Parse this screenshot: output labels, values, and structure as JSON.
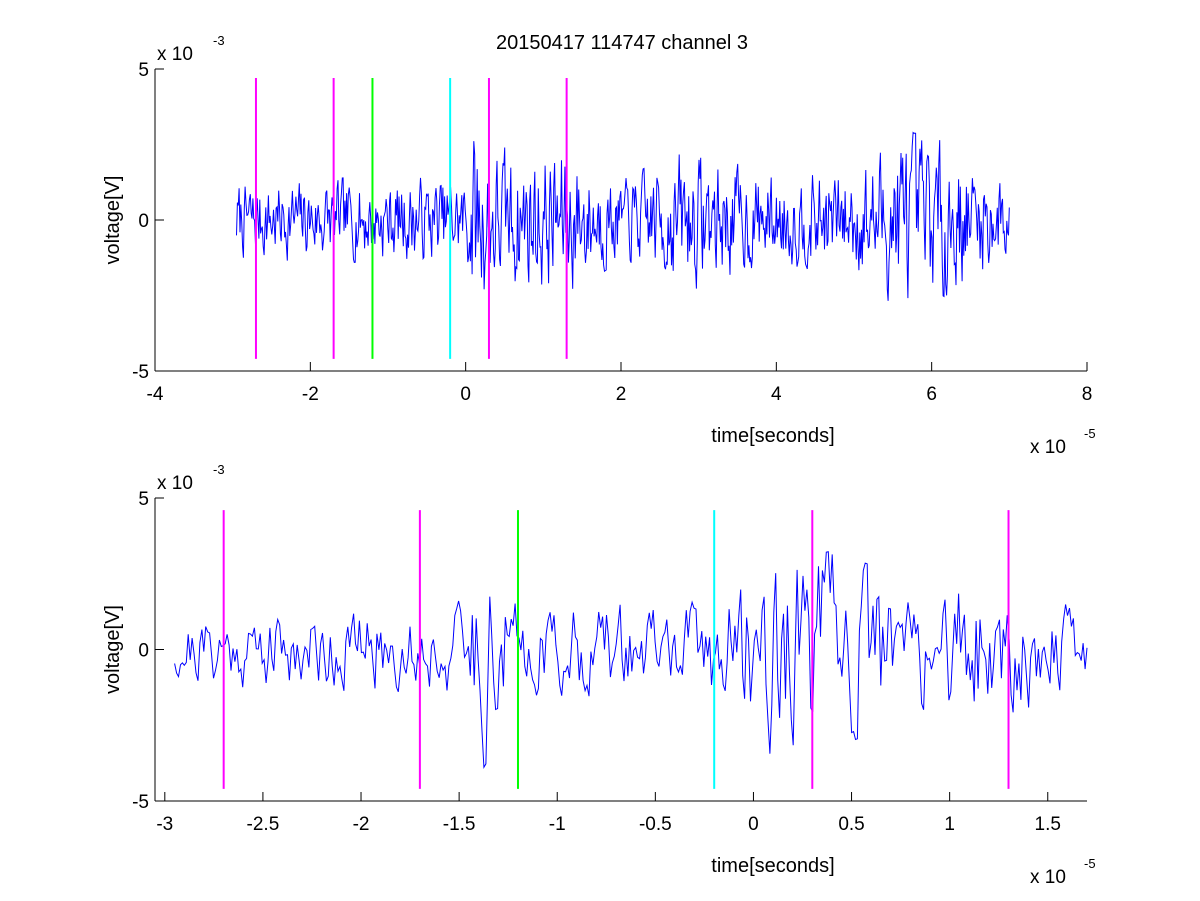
{
  "chart_data": [
    {
      "type": "line",
      "title": "20150417 114747 channel 3",
      "xlabel": "time[seconds]",
      "ylabel": "voltage[V]",
      "xlim": [
        -4,
        8
      ],
      "ylim": [
        -5,
        5
      ],
      "x_ticks": [
        -4,
        -2,
        0,
        2,
        4,
        6,
        8
      ],
      "x_tick_labels": [
        "-4",
        "-2",
        "0",
        "2",
        "4",
        "6",
        "8"
      ],
      "y_ticks": [
        -5,
        0,
        5
      ],
      "y_tick_labels": [
        "-5",
        "0",
        "5"
      ],
      "x_multiplier": {
        "base": "x 10",
        "exponent": "-5"
      },
      "y_multiplier": {
        "base": "x 10",
        "exponent": "-3"
      },
      "grid": false,
      "signal": {
        "color": "#0000ff",
        "x_range": [
          -2.95,
          7.0
        ],
        "samples": 900,
        "amplitude_envelope": [
          {
            "x": -2.95,
            "y": 1.3
          },
          {
            "x": 0.0,
            "y": 1.5
          },
          {
            "x": 0.1,
            "y": 3.2
          },
          {
            "x": 0.5,
            "y": 2.4
          },
          {
            "x": 1.3,
            "y": 2.6
          },
          {
            "x": 2.0,
            "y": 1.3
          },
          {
            "x": 2.8,
            "y": 2.4
          },
          {
            "x": 4.0,
            "y": 1.5
          },
          {
            "x": 5.0,
            "y": 1.8
          },
          {
            "x": 5.6,
            "y": 3.0
          },
          {
            "x": 6.2,
            "y": 2.6
          },
          {
            "x": 7.0,
            "y": 1.4
          }
        ]
      },
      "markers": [
        {
          "x": -2.7,
          "color": "#ff00ff",
          "y_range": [
            -4.6,
            4.7
          ]
        },
        {
          "x": -1.7,
          "color": "#ff00ff",
          "y_range": [
            -4.6,
            4.7
          ]
        },
        {
          "x": -1.2,
          "color": "#00ff00",
          "y_range": [
            -4.6,
            4.7
          ]
        },
        {
          "x": -0.2,
          "color": "#00ffff",
          "y_range": [
            -4.6,
            4.7
          ]
        },
        {
          "x": 0.3,
          "color": "#ff00ff",
          "y_range": [
            -4.6,
            4.7
          ]
        },
        {
          "x": 1.3,
          "color": "#ff00ff",
          "y_range": [
            -4.6,
            4.7
          ]
        }
      ]
    },
    {
      "type": "line",
      "title": "",
      "xlabel": "time[seconds]",
      "ylabel": "voltage[V]",
      "xlim": [
        -3.05,
        1.7
      ],
      "ylim": [
        -5,
        5
      ],
      "x_ticks": [
        -3,
        -2.5,
        -2,
        -1.5,
        -1,
        -0.5,
        0,
        0.5,
        1,
        1.5
      ],
      "x_tick_labels": [
        "-3",
        "-2.5",
        "-2",
        "-1.5",
        "-1",
        "-0.5",
        "0",
        "0.5",
        "1",
        "1.5"
      ],
      "y_ticks": [
        -5,
        0,
        5
      ],
      "y_tick_labels": [
        "-5",
        "0",
        "5"
      ],
      "x_multiplier": {
        "base": "x 10",
        "exponent": "-5"
      },
      "y_multiplier": {
        "base": "x 10",
        "exponent": "-3"
      },
      "grid": false,
      "signal": {
        "color": "#0000ff",
        "x_range": [
          -2.95,
          1.7
        ],
        "samples": 470,
        "amplitude_envelope": [
          {
            "x": -2.95,
            "y": 1.2
          },
          {
            "x": -2.5,
            "y": 1.3
          },
          {
            "x": -1.5,
            "y": 1.6
          },
          {
            "x": -1.38,
            "y": 4.0
          },
          {
            "x": -1.2,
            "y": 1.5
          },
          {
            "x": -0.3,
            "y": 1.6
          },
          {
            "x": 0.0,
            "y": 2.6
          },
          {
            "x": 0.1,
            "y": 3.6
          },
          {
            "x": 0.3,
            "y": 3.5
          },
          {
            "x": 0.8,
            "y": 2.3
          },
          {
            "x": 1.25,
            "y": 2.4
          },
          {
            "x": 1.7,
            "y": 1.2
          }
        ]
      },
      "markers": [
        {
          "x": -2.7,
          "color": "#ff00ff",
          "y_range": [
            -4.6,
            4.6
          ]
        },
        {
          "x": -1.7,
          "color": "#ff00ff",
          "y_range": [
            -4.6,
            4.6
          ]
        },
        {
          "x": -1.2,
          "color": "#00ff00",
          "y_range": [
            -4.6,
            4.6
          ]
        },
        {
          "x": -0.2,
          "color": "#00ffff",
          "y_range": [
            -4.6,
            4.6
          ]
        },
        {
          "x": 0.3,
          "color": "#ff00ff",
          "y_range": [
            -4.6,
            4.6
          ]
        },
        {
          "x": 1.3,
          "color": "#ff00ff",
          "y_range": [
            -4.6,
            4.6
          ]
        }
      ]
    }
  ]
}
